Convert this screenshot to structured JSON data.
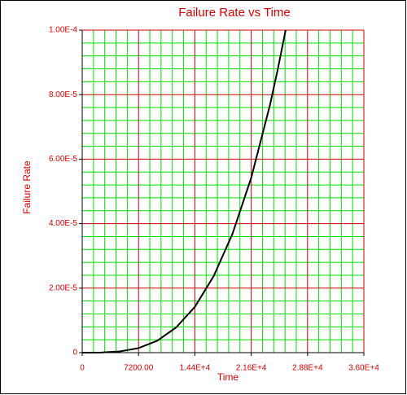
{
  "chart_data": {
    "type": "line",
    "title": "Failure Rate vs Time",
    "x_label": "Time",
    "y_label": "Failure Rate",
    "x": [
      0,
      2400,
      4800,
      7200,
      9600,
      12000,
      14400,
      16800,
      19200,
      21600,
      24000,
      25000,
      26000
    ],
    "series": [
      {
        "color": "#000000",
        "values": [
          0,
          3.9e-08,
          3.8e-07,
          1.4e-06,
          3.7e-06,
          7.8e-06,
          1.42e-05,
          2.37e-05,
          3.68e-05,
          5.42e-05,
          7.68e-05,
          8.79e-05,
          0.0001
        ]
      }
    ],
    "xlim": [
      0,
      36000
    ],
    "xticks": [
      0,
      {
        "value": 7200,
        "label": "7200.00"
      },
      {
        "value": 14400,
        "label": "1.44E+4"
      },
      {
        "value": 21600,
        "label": "2.16E+4"
      },
      {
        "value": 28800,
        "label": "2.88E+4"
      },
      {
        "value": 36000,
        "label": "3.60E+4"
      }
    ],
    "ylim": [
      0,
      0.0001
    ],
    "yticks": [
      0,
      {
        "value": 2e-05,
        "label": "2.00E-5"
      },
      {
        "value": 4e-05,
        "label": "4.00E-5"
      },
      {
        "value": 6e-05,
        "label": "6.00E-5"
      },
      {
        "value": 8e-05,
        "label": "8.00E-5"
      },
      {
        "value": 0.0001,
        "label": "1.00E-4"
      }
    ],
    "grid": true,
    "major_grid_color": "#cc0000",
    "minor_grid_color": "#00dd00",
    "minor_divisions": 5,
    "text_color": "#dd0000"
  }
}
